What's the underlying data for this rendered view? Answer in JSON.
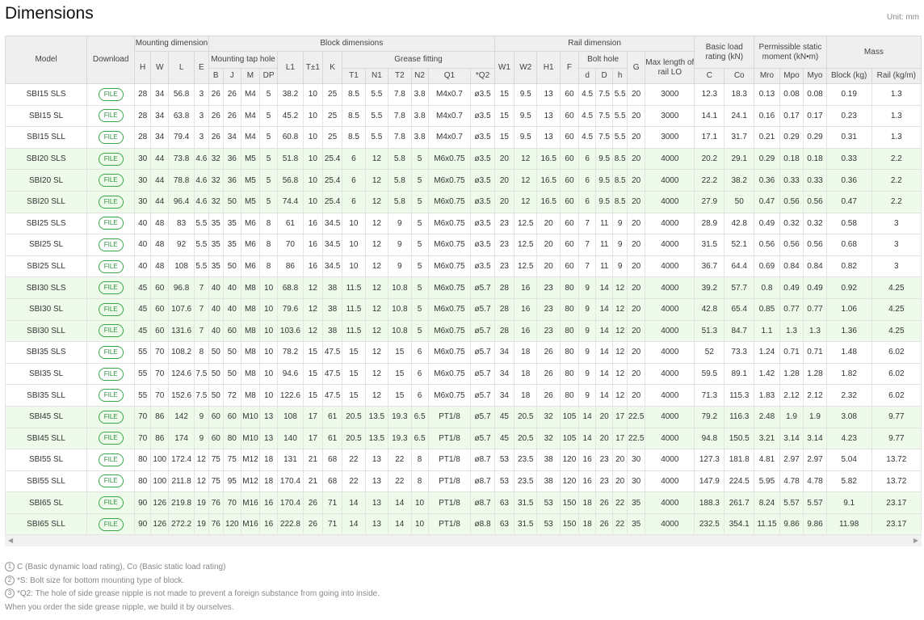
{
  "title": "Dimensions",
  "unit": "Unit: mm",
  "header": {
    "model": "Model",
    "download": "Download",
    "mounting_dimension": "Mounting dimension",
    "block_dimensions": "Block dimensions",
    "rail_dimension": "Rail dimension",
    "basic_load_rating": "Basic load rating (kN)",
    "permissible_static_moment": "Permissible static moment (kN•m)",
    "mass": "Mass",
    "mounting_tap_hole": "Mounting tap hole",
    "grease_fitting": "Grease fitting",
    "bolt_hole": "Bolt hole",
    "max_length": "Max length of rail LO",
    "H": "H",
    "W": "W",
    "L": "L",
    "E": "E",
    "B": "B",
    "J": "J",
    "M": "M",
    "DP": "DP",
    "L1": "L1",
    "T": "T±1",
    "K": "K",
    "T1": "T1",
    "N1": "N1",
    "T2": "T2",
    "N2": "N2",
    "Q1": "Q1",
    "Q2": "*Q2",
    "W1": "W1",
    "W2": "W2",
    "H1": "H1",
    "F": "F",
    "d": "d",
    "D": "D",
    "h": "h",
    "G": "G",
    "C": "C",
    "Co": "Co",
    "Mro": "Mro",
    "Mpo": "Mpo",
    "Myo": "Myo",
    "block_kg": "Block (kg)",
    "rail_kgm": "Rail (kg/m)"
  },
  "file_label": "FILE",
  "rows": [
    [
      "SBI15 SLS",
      "28",
      "34",
      "56.8",
      "3",
      "26",
      "26",
      "M4",
      "5",
      "38.2",
      "10",
      "25",
      "8.5",
      "5.5",
      "7.8",
      "3.8",
      "M4x0.7",
      "ø3.5",
      "15",
      "9.5",
      "13",
      "60",
      "4.5",
      "7.5",
      "5.5",
      "20",
      "3000",
      "12.3",
      "18.3",
      "0.13",
      "0.08",
      "0.08",
      "0.19",
      "1.3"
    ],
    [
      "SBI15 SL",
      "28",
      "34",
      "63.8",
      "3",
      "26",
      "26",
      "M4",
      "5",
      "45.2",
      "10",
      "25",
      "8.5",
      "5.5",
      "7.8",
      "3.8",
      "M4x0.7",
      "ø3.5",
      "15",
      "9.5",
      "13",
      "60",
      "4.5",
      "7.5",
      "5.5",
      "20",
      "3000",
      "14.1",
      "24.1",
      "0.16",
      "0.17",
      "0.17",
      "0.23",
      "1.3"
    ],
    [
      "SBI15 SLL",
      "28",
      "34",
      "79.4",
      "3",
      "26",
      "34",
      "M4",
      "5",
      "60.8",
      "10",
      "25",
      "8.5",
      "5.5",
      "7.8",
      "3.8",
      "M4x0.7",
      "ø3.5",
      "15",
      "9.5",
      "13",
      "60",
      "4.5",
      "7.5",
      "5.5",
      "20",
      "3000",
      "17.1",
      "31.7",
      "0.21",
      "0.29",
      "0.29",
      "0.31",
      "1.3"
    ],
    [
      "SBI20 SLS",
      "30",
      "44",
      "73.8",
      "4.6",
      "32",
      "36",
      "M5",
      "5",
      "51.8",
      "10",
      "25.4",
      "6",
      "12",
      "5.8",
      "5",
      "M6x0.75",
      "ø3.5",
      "20",
      "12",
      "16.5",
      "60",
      "6",
      "9.5",
      "8.5",
      "20",
      "4000",
      "20.2",
      "29.1",
      "0.29",
      "0.18",
      "0.18",
      "0.33",
      "2.2"
    ],
    [
      "SBI20 SL",
      "30",
      "44",
      "78.8",
      "4.6",
      "32",
      "36",
      "M5",
      "5",
      "56.8",
      "10",
      "25.4",
      "6",
      "12",
      "5.8",
      "5",
      "M6x0.75",
      "ø3.5",
      "20",
      "12",
      "16.5",
      "60",
      "6",
      "9.5",
      "8.5",
      "20",
      "4000",
      "22.2",
      "38.2",
      "0.36",
      "0.33",
      "0.33",
      "0.36",
      "2.2"
    ],
    [
      "SBI20 SLL",
      "30",
      "44",
      "96.4",
      "4.6",
      "32",
      "50",
      "M5",
      "5",
      "74.4",
      "10",
      "25.4",
      "6",
      "12",
      "5.8",
      "5",
      "M6x0.75",
      "ø3.5",
      "20",
      "12",
      "16.5",
      "60",
      "6",
      "9.5",
      "8.5",
      "20",
      "4000",
      "27.9",
      "50",
      "0.47",
      "0.56",
      "0.56",
      "0.47",
      "2.2"
    ],
    [
      "SBI25 SLS",
      "40",
      "48",
      "83",
      "5.5",
      "35",
      "35",
      "M6",
      "8",
      "61",
      "16",
      "34.5",
      "10",
      "12",
      "9",
      "5",
      "M6x0.75",
      "ø3.5",
      "23",
      "12.5",
      "20",
      "60",
      "7",
      "11",
      "9",
      "20",
      "4000",
      "28.9",
      "42.8",
      "0.49",
      "0.32",
      "0.32",
      "0.58",
      "3"
    ],
    [
      "SBI25 SL",
      "40",
      "48",
      "92",
      "5.5",
      "35",
      "35",
      "M6",
      "8",
      "70",
      "16",
      "34.5",
      "10",
      "12",
      "9",
      "5",
      "M6x0.75",
      "ø3.5",
      "23",
      "12.5",
      "20",
      "60",
      "7",
      "11",
      "9",
      "20",
      "4000",
      "31.5",
      "52.1",
      "0.56",
      "0.56",
      "0.56",
      "0.68",
      "3"
    ],
    [
      "SBI25 SLL",
      "40",
      "48",
      "108",
      "5.5",
      "35",
      "50",
      "M6",
      "8",
      "86",
      "16",
      "34.5",
      "10",
      "12",
      "9",
      "5",
      "M6x0.75",
      "ø3.5",
      "23",
      "12.5",
      "20",
      "60",
      "7",
      "11",
      "9",
      "20",
      "4000",
      "36.7",
      "64.4",
      "0.69",
      "0.84",
      "0.84",
      "0.82",
      "3"
    ],
    [
      "SBI30 SLS",
      "45",
      "60",
      "96.8",
      "7",
      "40",
      "40",
      "M8",
      "10",
      "68.8",
      "12",
      "38",
      "11.5",
      "12",
      "10.8",
      "5",
      "M6x0.75",
      "ø5.7",
      "28",
      "16",
      "23",
      "80",
      "9",
      "14",
      "12",
      "20",
      "4000",
      "39.2",
      "57.7",
      "0.8",
      "0.49",
      "0.49",
      "0.92",
      "4.25"
    ],
    [
      "SBI30 SL",
      "45",
      "60",
      "107.6",
      "7",
      "40",
      "40",
      "M8",
      "10",
      "79.6",
      "12",
      "38",
      "11.5",
      "12",
      "10.8",
      "5",
      "M6x0.75",
      "ø5.7",
      "28",
      "16",
      "23",
      "80",
      "9",
      "14",
      "12",
      "20",
      "4000",
      "42.8",
      "65.4",
      "0.85",
      "0.77",
      "0.77",
      "1.06",
      "4.25"
    ],
    [
      "SBI30 SLL",
      "45",
      "60",
      "131.6",
      "7",
      "40",
      "60",
      "M8",
      "10",
      "103.6",
      "12",
      "38",
      "11.5",
      "12",
      "10.8",
      "5",
      "M6x0.75",
      "ø5.7",
      "28",
      "16",
      "23",
      "80",
      "9",
      "14",
      "12",
      "20",
      "4000",
      "51.3",
      "84.7",
      "1.1",
      "1.3",
      "1.3",
      "1.36",
      "4.25"
    ],
    [
      "SBI35 SLS",
      "55",
      "70",
      "108.2",
      "8",
      "50",
      "50",
      "M8",
      "10",
      "78.2",
      "15",
      "47.5",
      "15",
      "12",
      "15",
      "6",
      "M6x0.75",
      "ø5.7",
      "34",
      "18",
      "26",
      "80",
      "9",
      "14",
      "12",
      "20",
      "4000",
      "52",
      "73.3",
      "1.24",
      "0.71",
      "0.71",
      "1.48",
      "6.02"
    ],
    [
      "SBI35 SL",
      "55",
      "70",
      "124.6",
      "7.5",
      "50",
      "50",
      "M8",
      "10",
      "94.6",
      "15",
      "47.5",
      "15",
      "12",
      "15",
      "6",
      "M6x0.75",
      "ø5.7",
      "34",
      "18",
      "26",
      "80",
      "9",
      "14",
      "12",
      "20",
      "4000",
      "59.5",
      "89.1",
      "1.42",
      "1.28",
      "1.28",
      "1.82",
      "6.02"
    ],
    [
      "SBI35 SLL",
      "55",
      "70",
      "152.6",
      "7.5",
      "50",
      "72",
      "M8",
      "10",
      "122.6",
      "15",
      "47.5",
      "15",
      "12",
      "15",
      "6",
      "M6x0.75",
      "ø5.7",
      "34",
      "18",
      "26",
      "80",
      "9",
      "14",
      "12",
      "20",
      "4000",
      "71.3",
      "115.3",
      "1.83",
      "2.12",
      "2.12",
      "2.32",
      "6.02"
    ],
    [
      "SBI45 SL",
      "70",
      "86",
      "142",
      "9",
      "60",
      "60",
      "M10",
      "13",
      "108",
      "17",
      "61",
      "20.5",
      "13.5",
      "19.3",
      "6.5",
      "PT1/8",
      "ø5.7",
      "45",
      "20.5",
      "32",
      "105",
      "14",
      "20",
      "17",
      "22.5",
      "4000",
      "79.2",
      "116.3",
      "2.48",
      "1.9",
      "1.9",
      "3.08",
      "9.77"
    ],
    [
      "SBI45 SLL",
      "70",
      "86",
      "174",
      "9",
      "60",
      "80",
      "M10",
      "13",
      "140",
      "17",
      "61",
      "20.5",
      "13.5",
      "19.3",
      "6.5",
      "PT1/8",
      "ø5.7",
      "45",
      "20.5",
      "32",
      "105",
      "14",
      "20",
      "17",
      "22.5",
      "4000",
      "94.8",
      "150.5",
      "3.21",
      "3.14",
      "3.14",
      "4.23",
      "9.77"
    ],
    [
      "SBI55 SL",
      "80",
      "100",
      "172.4",
      "12",
      "75",
      "75",
      "M12",
      "18",
      "131",
      "21",
      "68",
      "22",
      "13",
      "22",
      "8",
      "PT1/8",
      "ø8.7",
      "53",
      "23.5",
      "38",
      "120",
      "16",
      "23",
      "20",
      "30",
      "4000",
      "127.3",
      "181.8",
      "4.81",
      "2.97",
      "2.97",
      "5.04",
      "13.72"
    ],
    [
      "SBI55 SLL",
      "80",
      "100",
      "211.8",
      "12",
      "75",
      "95",
      "M12",
      "18",
      "170.4",
      "21",
      "68",
      "22",
      "13",
      "22",
      "8",
      "PT1/8",
      "ø8.7",
      "53",
      "23.5",
      "38",
      "120",
      "16",
      "23",
      "20",
      "30",
      "4000",
      "147.9",
      "224.5",
      "5.95",
      "4.78",
      "4.78",
      "5.82",
      "13.72"
    ],
    [
      "SBI65 SL",
      "90",
      "126",
      "219.8",
      "19",
      "76",
      "70",
      "M16",
      "16",
      "170.4",
      "26",
      "71",
      "14",
      "13",
      "14",
      "10",
      "PT1/8",
      "ø8.7",
      "63",
      "31.5",
      "53",
      "150",
      "18",
      "26",
      "22",
      "35",
      "4000",
      "188.3",
      "261.7",
      "8.24",
      "5.57",
      "5.57",
      "9.1",
      "23.17"
    ],
    [
      "SBI65 SLL",
      "90",
      "126",
      "272.2",
      "19",
      "76",
      "120",
      "M16",
      "16",
      "222.8",
      "26",
      "71",
      "14",
      "13",
      "14",
      "10",
      "PT1/8",
      "ø8.8",
      "63",
      "31.5",
      "53",
      "150",
      "18",
      "26",
      "22",
      "35",
      "4000",
      "232.5",
      "354.1",
      "11.15",
      "9.86",
      "9.86",
      "11.98",
      "23.17"
    ]
  ],
  "scroll": {
    "left_arrow": "◀",
    "right_arrow": "▶"
  },
  "notes": {
    "n1_num": "1",
    "n1": "C (Basic dynamic load rating), Co (Basic static load rating)",
    "n2_num": "2",
    "n2": "*S: Bolt size for bottom mounting type of block.",
    "n3_num": "3",
    "n3": "*Q2: The hole of side grease nipple is not made to prevent a foreign substance from going into inside.",
    "n4": "When you order the side grease nipple, we build it by ourselves."
  }
}
